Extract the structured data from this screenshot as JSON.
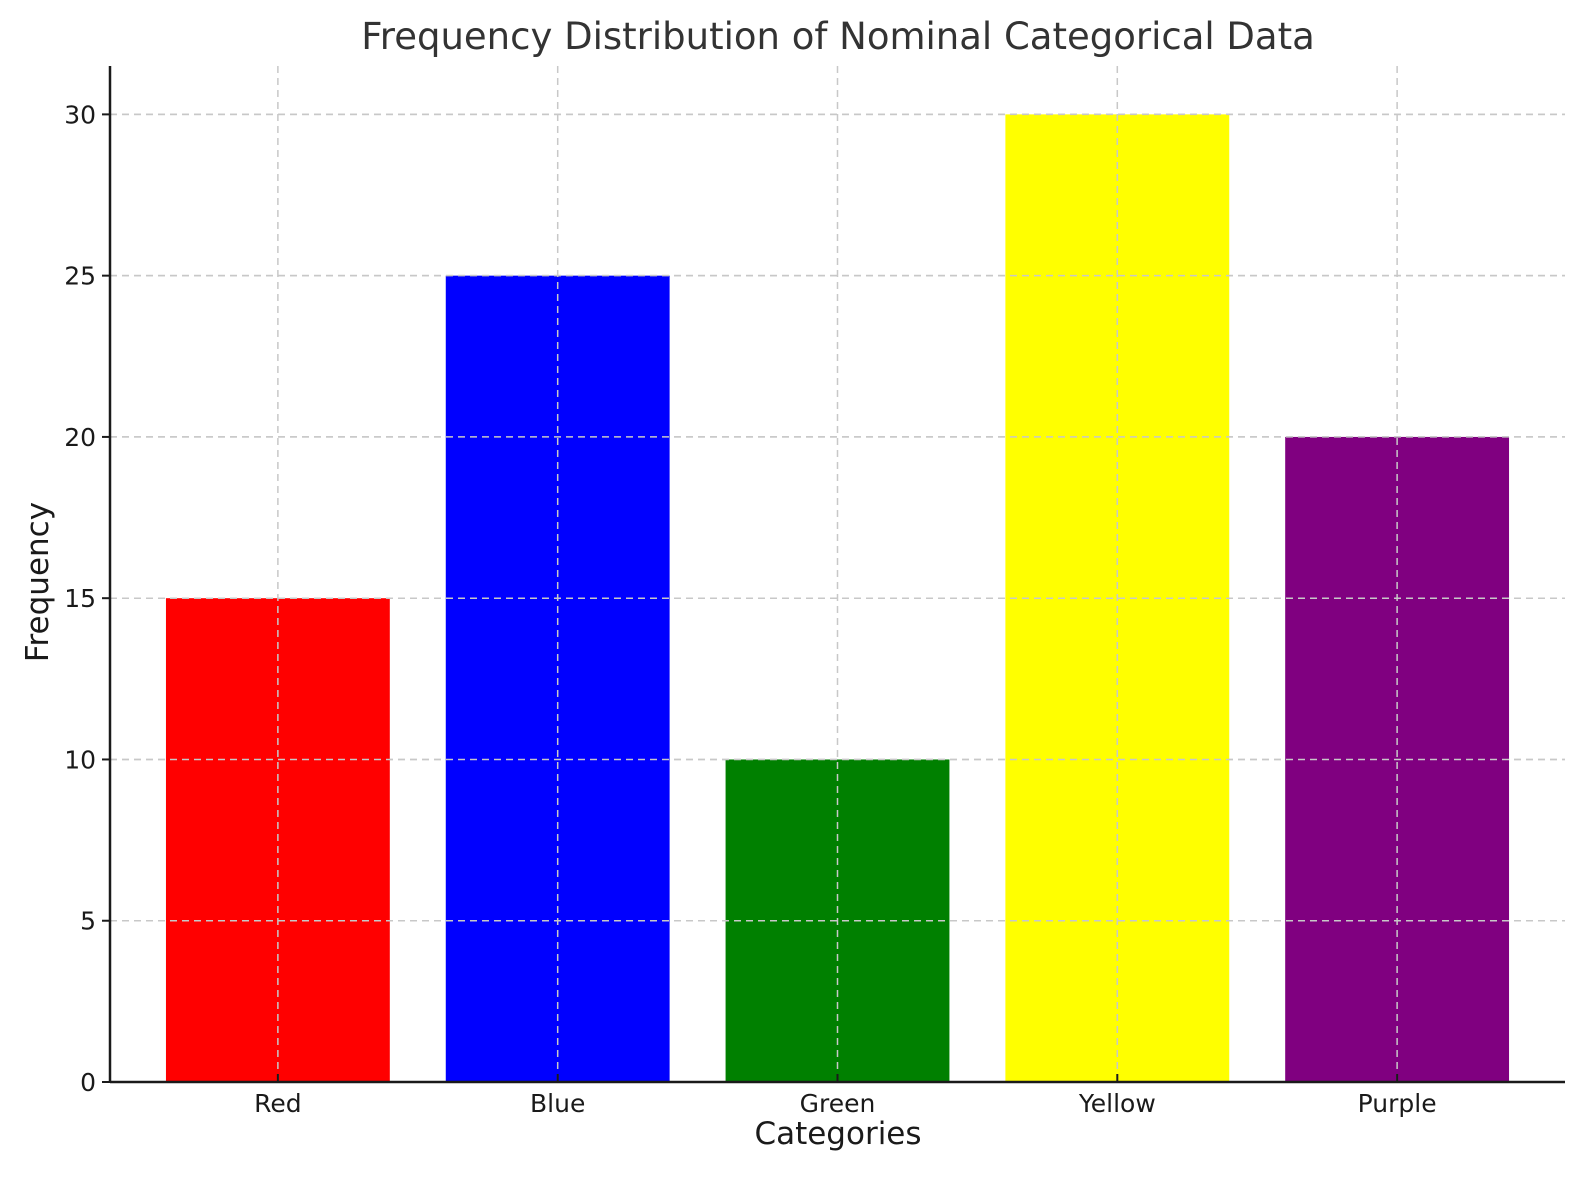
{
  "chart_data": {
    "type": "bar",
    "title": "Frequency Distribution of Nominal Categorical Data",
    "xlabel": "Categories",
    "ylabel": "Frequency",
    "categories": [
      "Red",
      "Blue",
      "Green",
      "Yellow",
      "Purple"
    ],
    "values": [
      15,
      25,
      10,
      30,
      20
    ],
    "colors": [
      "#ff0000",
      "#0000ff",
      "#008000",
      "#ffff00",
      "#800080"
    ],
    "ylim": [
      0,
      31.5
    ],
    "yticks": [
      0,
      5,
      10,
      15,
      20,
      25,
      30
    ],
    "grid": true,
    "legend": null
  }
}
